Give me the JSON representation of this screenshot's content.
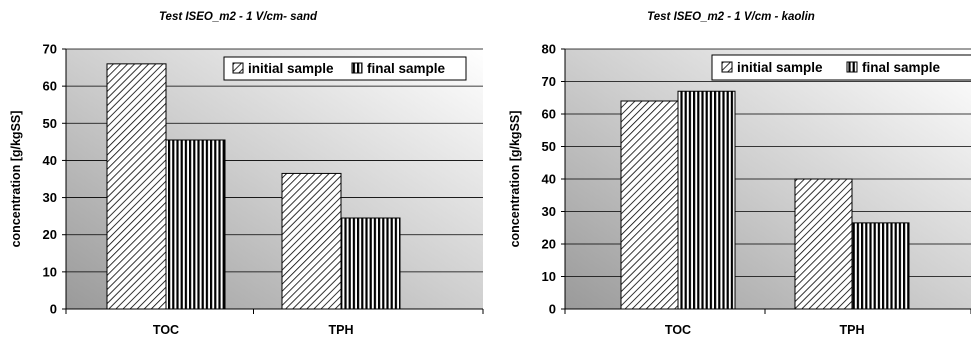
{
  "chart_data": [
    {
      "type": "bar",
      "title": "Test ISEO_m2 -  1 V/cm- sand",
      "ylabel": "concentration [g/kgSS]",
      "xlabel": "",
      "categories": [
        "TOC",
        "TPH"
      ],
      "ylim": [
        0,
        70
      ],
      "yticks": [
        0,
        10,
        20,
        30,
        40,
        50,
        60,
        70
      ],
      "grid": true,
      "legend_position": "top-right",
      "series": [
        {
          "name": "initial sample",
          "values": [
            66,
            36.5
          ],
          "pattern": "diagonal-hatch"
        },
        {
          "name": "final sample",
          "values": [
            45.5,
            24.5
          ],
          "pattern": "vertical-stripes"
        }
      ]
    },
    {
      "type": "bar",
      "title": "Test ISEO_m2 -  1 V/cm - kaolin",
      "ylabel": "concentration [g/kgSS]",
      "xlabel": "",
      "categories": [
        "TOC",
        "TPH"
      ],
      "ylim": [
        0,
        80
      ],
      "yticks": [
        0,
        10,
        20,
        30,
        40,
        50,
        60,
        70,
        80
      ],
      "grid": true,
      "legend_position": "top-right",
      "series": [
        {
          "name": "initial sample",
          "values": [
            64,
            40
          ],
          "pattern": "diagonal-hatch"
        },
        {
          "name": "final sample",
          "values": [
            67,
            26.5
          ],
          "pattern": "vertical-stripes"
        }
      ]
    }
  ],
  "colors": {
    "plot_gradient_dark": "#9a9a9a",
    "plot_gradient_light": "#ffffff",
    "bar_ink": "#000000",
    "bar_fill": "#ffffff"
  }
}
